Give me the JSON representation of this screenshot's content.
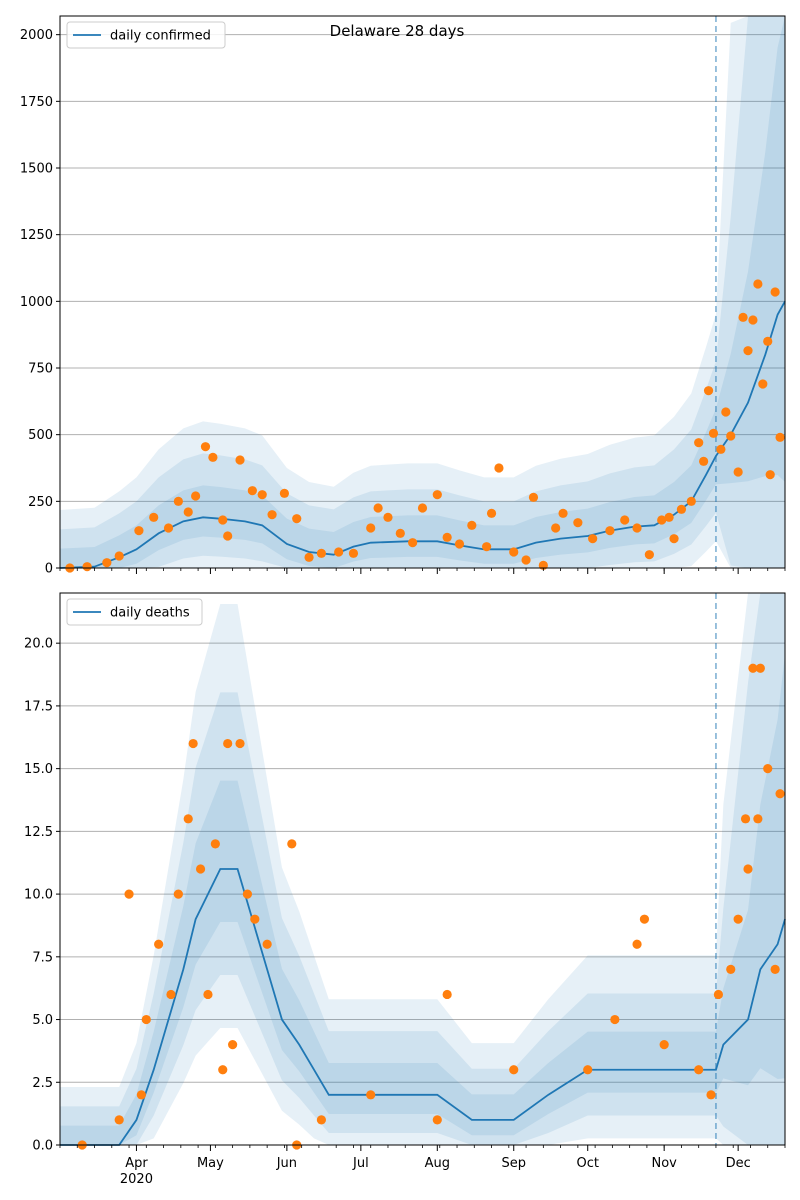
{
  "chart_data": [
    {
      "type": "line",
      "title": "Delaware 28 days",
      "xlabel": "",
      "ylabel": "",
      "x_range": [
        "2020-03-01",
        "2020-12-20"
      ],
      "ylim": [
        0,
        2070
      ],
      "y_ticks": [
        0,
        250,
        500,
        750,
        1000,
        1250,
        1500,
        1750,
        2000
      ],
      "y_tick_labels": [
        "0",
        "250",
        "500",
        "750",
        "1000",
        "1250",
        "1500",
        "1750",
        "2000"
      ],
      "grid": "horizontal",
      "legend_position": "top-left",
      "forecast_start": "2020-11-22",
      "series": [
        {
          "name": "daily confirmed",
          "kind": "line",
          "color": "#1f77b4",
          "points": [
            [
              "2020-03-01",
              0
            ],
            [
              "2020-03-15",
              5
            ],
            [
              "2020-03-25",
              40
            ],
            [
              "2020-04-01",
              70
            ],
            [
              "2020-04-10",
              130
            ],
            [
              "2020-04-20",
              175
            ],
            [
              "2020-04-28",
              190
            ],
            [
              "2020-05-05",
              185
            ],
            [
              "2020-05-15",
              175
            ],
            [
              "2020-05-22",
              160
            ],
            [
              "2020-06-01",
              90
            ],
            [
              "2020-06-10",
              60
            ],
            [
              "2020-06-20",
              50
            ],
            [
              "2020-06-28",
              80
            ],
            [
              "2020-07-05",
              95
            ],
            [
              "2020-07-20",
              100
            ],
            [
              "2020-08-01",
              100
            ],
            [
              "2020-08-10",
              85
            ],
            [
              "2020-08-20",
              70
            ],
            [
              "2020-09-01",
              70
            ],
            [
              "2020-09-10",
              95
            ],
            [
              "2020-09-20",
              110
            ],
            [
              "2020-10-01",
              120
            ],
            [
              "2020-10-10",
              140
            ],
            [
              "2020-10-20",
              155
            ],
            [
              "2020-10-28",
              160
            ],
            [
              "2020-11-05",
              200
            ],
            [
              "2020-11-12",
              250
            ],
            [
              "2020-11-18",
              350
            ],
            [
              "2020-11-22",
              420
            ],
            [
              "2020-11-28",
              500
            ],
            [
              "2020-12-05",
              620
            ],
            [
              "2020-12-12",
              800
            ],
            [
              "2020-12-17",
              950
            ],
            [
              "2020-12-20",
              1000
            ]
          ]
        },
        {
          "name": "",
          "kind": "observed points",
          "color": "#ff7f0e",
          "points": [
            [
              "2020-03-05",
              0
            ],
            [
              "2020-03-12",
              5
            ],
            [
              "2020-03-20",
              20
            ],
            [
              "2020-03-25",
              45
            ],
            [
              "2020-04-02",
              140
            ],
            [
              "2020-04-08",
              190
            ],
            [
              "2020-04-14",
              150
            ],
            [
              "2020-04-18",
              250
            ],
            [
              "2020-04-22",
              210
            ],
            [
              "2020-04-25",
              270
            ],
            [
              "2020-04-29",
              455
            ],
            [
              "2020-05-02",
              415
            ],
            [
              "2020-05-06",
              180
            ],
            [
              "2020-05-08",
              120
            ],
            [
              "2020-05-13",
              405
            ],
            [
              "2020-05-18",
              290
            ],
            [
              "2020-05-22",
              275
            ],
            [
              "2020-05-26",
              200
            ],
            [
              "2020-05-31",
              280
            ],
            [
              "2020-06-05",
              185
            ],
            [
              "2020-06-10",
              40
            ],
            [
              "2020-06-15",
              55
            ],
            [
              "2020-06-22",
              60
            ],
            [
              "2020-06-28",
              55
            ],
            [
              "2020-07-05",
              150
            ],
            [
              "2020-07-08",
              225
            ],
            [
              "2020-07-12",
              190
            ],
            [
              "2020-07-17",
              130
            ],
            [
              "2020-07-22",
              95
            ],
            [
              "2020-07-26",
              225
            ],
            [
              "2020-08-01",
              275
            ],
            [
              "2020-08-05",
              115
            ],
            [
              "2020-08-10",
              90
            ],
            [
              "2020-08-15",
              160
            ],
            [
              "2020-08-21",
              80
            ],
            [
              "2020-08-23",
              205
            ],
            [
              "2020-08-26",
              375
            ],
            [
              "2020-09-01",
              60
            ],
            [
              "2020-09-06",
              30
            ],
            [
              "2020-09-09",
              265
            ],
            [
              "2020-09-13",
              10
            ],
            [
              "2020-09-18",
              150
            ],
            [
              "2020-09-21",
              205
            ],
            [
              "2020-09-27",
              170
            ],
            [
              "2020-10-03",
              110
            ],
            [
              "2020-10-10",
              140
            ],
            [
              "2020-10-16",
              180
            ],
            [
              "2020-10-21",
              150
            ],
            [
              "2020-10-26",
              50
            ],
            [
              "2020-10-31",
              180
            ],
            [
              "2020-11-03",
              190
            ],
            [
              "2020-11-05",
              110
            ],
            [
              "2020-11-08",
              220
            ],
            [
              "2020-11-12",
              250
            ],
            [
              "2020-11-15",
              470
            ],
            [
              "2020-11-17",
              400
            ],
            [
              "2020-11-19",
              665
            ],
            [
              "2020-11-21",
              505
            ],
            [
              "2020-11-24",
              445
            ],
            [
              "2020-11-26",
              585
            ],
            [
              "2020-11-28",
              495
            ],
            [
              "2020-12-01",
              360
            ],
            [
              "2020-12-03",
              940
            ],
            [
              "2020-12-05",
              815
            ],
            [
              "2020-12-07",
              930
            ],
            [
              "2020-12-09",
              1065
            ],
            [
              "2020-12-11",
              690
            ],
            [
              "2020-12-13",
              850
            ],
            [
              "2020-12-14",
              350
            ],
            [
              "2020-12-16",
              1035
            ],
            [
              "2020-12-18",
              490
            ]
          ]
        }
      ]
    },
    {
      "type": "line",
      "title": "",
      "xlabel": "",
      "ylabel": "",
      "x_range": [
        "2020-03-01",
        "2020-12-20"
      ],
      "ylim": [
        0,
        22
      ],
      "y_ticks": [
        0,
        2.5,
        5,
        7.5,
        10,
        12.5,
        15,
        17.5,
        20
      ],
      "y_tick_labels": [
        "0.0",
        "2.5",
        "5.0",
        "7.5",
        "10.0",
        "12.5",
        "15.0",
        "17.5",
        "20.0"
      ],
      "x_ticks": [
        "2020-04-01",
        "2020-05-01",
        "2020-06-01",
        "2020-07-01",
        "2020-08-01",
        "2020-09-01",
        "2020-10-01",
        "2020-11-01",
        "2020-12-01"
      ],
      "x_tick_labels": [
        "Apr",
        "May",
        "Jun",
        "Jul",
        "Aug",
        "Sep",
        "Oct",
        "Nov",
        "Dec"
      ],
      "x_year_label": "2020",
      "grid": "horizontal",
      "legend_position": "top-left",
      "forecast_start": "2020-11-22",
      "series": [
        {
          "name": "daily deaths",
          "kind": "line",
          "color": "#1f77b4",
          "points": [
            [
              "2020-03-01",
              0
            ],
            [
              "2020-03-25",
              0
            ],
            [
              "2020-04-01",
              1
            ],
            [
              "2020-04-08",
              3
            ],
            [
              "2020-04-14",
              5
            ],
            [
              "2020-04-20",
              7
            ],
            [
              "2020-04-25",
              9
            ],
            [
              "2020-04-30",
              10
            ],
            [
              "2020-05-05",
              11
            ],
            [
              "2020-05-12",
              11
            ],
            [
              "2020-05-18",
              9
            ],
            [
              "2020-05-24",
              7
            ],
            [
              "2020-05-30",
              5
            ],
            [
              "2020-06-06",
              4
            ],
            [
              "2020-06-12",
              3
            ],
            [
              "2020-06-18",
              2
            ],
            [
              "2020-07-01",
              2
            ],
            [
              "2020-08-01",
              2
            ],
            [
              "2020-08-15",
              1
            ],
            [
              "2020-09-01",
              1
            ],
            [
              "2020-09-15",
              2
            ],
            [
              "2020-10-01",
              3
            ],
            [
              "2020-10-15",
              3
            ],
            [
              "2020-11-01",
              3
            ],
            [
              "2020-11-22",
              3
            ],
            [
              "2020-11-25",
              4
            ],
            [
              "2020-12-05",
              5
            ],
            [
              "2020-12-10",
              7
            ],
            [
              "2020-12-17",
              8
            ],
            [
              "2020-12-20",
              9
            ]
          ]
        },
        {
          "name": "",
          "kind": "observed points",
          "color": "#ff7f0e",
          "points": [
            [
              "2020-03-10",
              0
            ],
            [
              "2020-03-25",
              1
            ],
            [
              "2020-03-29",
              10
            ],
            [
              "2020-04-03",
              2
            ],
            [
              "2020-04-05",
              5
            ],
            [
              "2020-04-10",
              8
            ],
            [
              "2020-04-15",
              6
            ],
            [
              "2020-04-18",
              10
            ],
            [
              "2020-04-22",
              13
            ],
            [
              "2020-04-24",
              16
            ],
            [
              "2020-04-27",
              11
            ],
            [
              "2020-04-30",
              6
            ],
            [
              "2020-05-03",
              12
            ],
            [
              "2020-05-06",
              3
            ],
            [
              "2020-05-08",
              16
            ],
            [
              "2020-05-10",
              4
            ],
            [
              "2020-05-13",
              16
            ],
            [
              "2020-05-16",
              10
            ],
            [
              "2020-05-19",
              9
            ],
            [
              "2020-05-24",
              8
            ],
            [
              "2020-06-03",
              12
            ],
            [
              "2020-06-05",
              0
            ],
            [
              "2020-06-15",
              1
            ],
            [
              "2020-07-05",
              2
            ],
            [
              "2020-08-01",
              1
            ],
            [
              "2020-08-05",
              6
            ],
            [
              "2020-09-01",
              3
            ],
            [
              "2020-10-01",
              3
            ],
            [
              "2020-10-12",
              5
            ],
            [
              "2020-10-21",
              8
            ],
            [
              "2020-10-24",
              9
            ],
            [
              "2020-11-01",
              4
            ],
            [
              "2020-11-15",
              3
            ],
            [
              "2020-11-20",
              2
            ],
            [
              "2020-11-23",
              6
            ],
            [
              "2020-11-28",
              7
            ],
            [
              "2020-12-01",
              9
            ],
            [
              "2020-12-04",
              13
            ],
            [
              "2020-12-05",
              11
            ],
            [
              "2020-12-07",
              19
            ],
            [
              "2020-12-09",
              13
            ],
            [
              "2020-12-10",
              19
            ],
            [
              "2020-12-13",
              15
            ],
            [
              "2020-12-16",
              7
            ],
            [
              "2020-12-18",
              14
            ]
          ]
        }
      ]
    }
  ]
}
